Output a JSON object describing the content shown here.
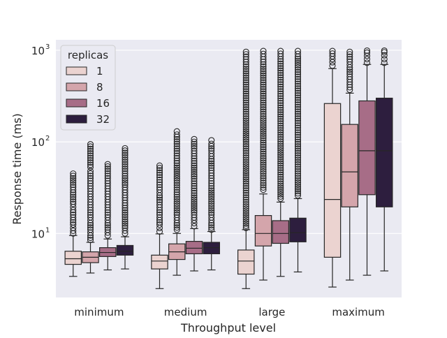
{
  "chart_data": {
    "type": "boxplot",
    "title": "",
    "xlabel": "Throughput level",
    "ylabel": "Response time (ms)",
    "yscale": "log",
    "ylim": [
      2.0,
      1300
    ],
    "categories": [
      "minimum",
      "medium",
      "large",
      "maximum"
    ],
    "yticks": [
      10,
      100,
      1000
    ],
    "ytick_labels": [
      {
        "base": "10",
        "exp": "1"
      },
      {
        "base": "10",
        "exp": "2"
      },
      {
        "base": "10",
        "exp": "3"
      }
    ],
    "grid": true,
    "legend": {
      "title": "replicas",
      "position": "top-left"
    },
    "series": [
      {
        "name": "1",
        "color": "#ebd3d0",
        "boxes": [
          {
            "whislo": 3.4,
            "q1": 4.6,
            "med": 5.3,
            "q3": 6.4,
            "whishi": 9.5,
            "fliers": [
              10,
              10.7,
              11.5,
              12.5,
              14,
              16,
              18,
              21,
              25,
              28,
              32,
              36,
              40,
              45
            ]
          },
          {
            "whislo": 2.5,
            "q1": 4.1,
            "med": 5.0,
            "q3": 5.8,
            "whishi": 9.9,
            "fliers": [
              10.5,
              11.5,
              12.5,
              14,
              16,
              18,
              22,
              26,
              30,
              41,
              55
            ]
          },
          {
            "whislo": 2.5,
            "q1": 3.6,
            "med": 5.0,
            "q3": 6.6,
            "whishi": 11,
            "fliers": [
              11.5,
              15,
              22,
              35,
              60,
              100,
              170,
              300,
              500,
              700,
              850,
              960
            ]
          },
          {
            "whislo": 2.6,
            "q1": 5.5,
            "med": 23.5,
            "q3": 262,
            "whishi": 630,
            "fliers": [
              680,
              740,
              800,
              860,
              920,
              980
            ]
          }
        ]
      },
      {
        "name": "8",
        "color": "#d4a5ab",
        "boxes": [
          {
            "whislo": 3.7,
            "q1": 4.8,
            "med": 5.5,
            "q3": 6.3,
            "whishi": 8.0,
            "fliers": [
              8.5,
              9.5,
              11,
              13,
              15,
              18,
              22,
              27,
              33,
              40,
              48,
              53,
              94
            ]
          },
          {
            "whislo": 3.5,
            "q1": 5.2,
            "med": 6.3,
            "q3": 7.7,
            "whishi": 10,
            "fliers": [
              11,
              13,
              16,
              20,
              25,
              30,
              40,
              55,
              75,
              95,
              120,
              130
            ]
          },
          {
            "whislo": 3.1,
            "q1": 7.3,
            "med": 10,
            "q3": 15.7,
            "whishi": 27,
            "fliers": [
              30,
              45,
              70,
              110,
              180,
              300,
              500,
              700,
              850,
              980
            ]
          },
          {
            "whislo": 3.1,
            "q1": 19.5,
            "med": 47,
            "q3": 155,
            "whishi": 340,
            "fliers": [
              370,
              450,
              550,
              650,
              750,
              850,
              960
            ]
          }
        ]
      },
      {
        "name": "16",
        "color": "#a76d87",
        "boxes": [
          {
            "whislo": 4.0,
            "q1": 5.6,
            "med": 6.2,
            "q3": 7.0,
            "whishi": 8.7,
            "fliers": [
              9.5,
              11,
              13,
              15,
              18,
              22,
              27,
              33,
              40,
              48,
              57
            ]
          },
          {
            "whislo": 3.9,
            "q1": 6.0,
            "med": 6.9,
            "q3": 8.2,
            "whishi": 11.3,
            "fliers": [
              12,
              14,
              17,
              21,
              26,
              33,
              42,
              55,
              70,
              85,
              100,
              107
            ]
          },
          {
            "whislo": 3.4,
            "q1": 7.8,
            "med": 10,
            "q3": 13.8,
            "whishi": 22,
            "fliers": [
              24,
              35,
              55,
              90,
              150,
              250,
              400,
              600,
              800,
              980
            ]
          },
          {
            "whislo": 3.5,
            "q1": 26.5,
            "med": 80,
            "q3": 280,
            "whishi": 700,
            "fliers": [
              730,
              800,
              870,
              940,
              990
            ]
          }
        ]
      },
      {
        "name": "32",
        "color": "#2d1e3e",
        "boxes": [
          {
            "whislo": 4.1,
            "q1": 5.8,
            "med": 6.4,
            "q3": 7.4,
            "whishi": 9.2,
            "fliers": [
              10,
              11.5,
              13.5,
              16,
              19,
              23,
              28,
              34,
              40,
              48,
              85
            ]
          },
          {
            "whislo": 4.0,
            "q1": 6.0,
            "med": 7.0,
            "q3": 8.0,
            "whishi": 10.5,
            "fliers": [
              11,
              13,
              16,
              20,
              25,
              31,
              40,
              52,
              65,
              80,
              95,
              104
            ]
          },
          {
            "whislo": 3.8,
            "q1": 8.1,
            "med": 10.2,
            "q3": 14.7,
            "whishi": 24,
            "fliers": [
              26,
              38,
              60,
              100,
              160,
              270,
              430,
              650,
              850,
              980
            ]
          },
          {
            "whislo": 3.9,
            "q1": 19.5,
            "med": 80,
            "q3": 300,
            "whishi": 700,
            "fliers": [
              730,
              800,
              880,
              950,
              990
            ]
          }
        ]
      }
    ]
  }
}
